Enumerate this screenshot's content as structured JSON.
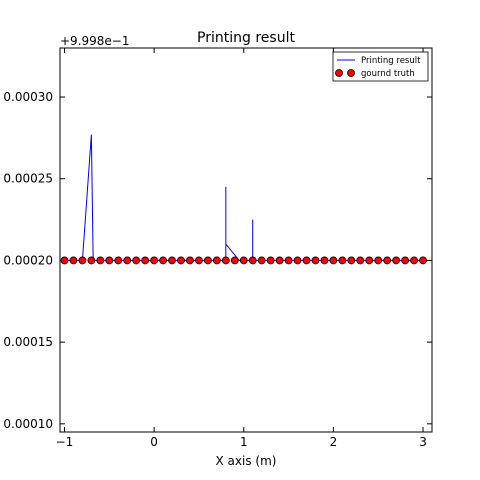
{
  "chart_data": {
    "type": "line",
    "title": "Printing result",
    "xlabel": "X axis (m)",
    "ylabel": "",
    "y_offset_label": "+9.998e−1",
    "xlim": [
      -1.05,
      3.1
    ],
    "ylim": [
      9.5e-05,
      0.00033
    ],
    "x_ticks": [
      -1,
      0,
      1,
      2,
      3
    ],
    "x_tick_labels": [
      "−1",
      "0",
      "1",
      "2",
      "3"
    ],
    "y_ticks": [
      0.0001,
      0.00015,
      0.0002,
      0.00025,
      0.0003
    ],
    "y_tick_labels": [
      "0.00010",
      "0.00015",
      "0.00020",
      "0.00025",
      "0.00030"
    ],
    "grid": false,
    "legend_position": "top-right",
    "series": [
      {
        "name": "Printing result",
        "kind": "line",
        "color": "#0000ff",
        "x": [
          -1.0,
          -0.9,
          -0.8,
          -0.7,
          -0.68,
          -0.56,
          -0.5,
          -0.4,
          -0.3,
          -0.2,
          -0.1,
          0.0,
          0.1,
          0.2,
          0.3,
          0.4,
          0.5,
          0.6,
          0.7,
          0.8,
          0.8,
          0.8,
          0.8,
          0.95,
          1.0,
          1.1,
          1.1,
          1.1,
          1.2,
          1.3,
          1.4,
          1.5,
          1.6,
          1.7,
          1.8,
          1.9,
          2.0,
          2.1,
          2.2,
          2.3,
          2.4,
          2.5,
          2.6,
          2.7,
          2.8,
          2.9,
          3.0
        ],
        "y": [
          0.0002,
          0.0002,
          0.0002,
          0.000277,
          0.0002,
          0.0002,
          0.0002,
          0.0002,
          0.0002,
          0.0002,
          0.0002,
          0.0002,
          0.0002,
          0.0002,
          0.0002,
          0.0002,
          0.0002,
          0.0002,
          0.0002,
          0.0002,
          0.000245,
          0.0002,
          0.00021,
          0.0002,
          0.0002,
          0.0002,
          0.000225,
          0.0002,
          0.0002,
          0.0002,
          0.0002,
          0.0002,
          0.0002,
          0.0002,
          0.0002,
          0.0002,
          0.0002,
          0.0002,
          0.0002,
          0.0002,
          0.0002,
          0.0002,
          0.0002,
          0.0002,
          0.0002,
          0.0002,
          0.0002
        ]
      },
      {
        "name": "gournd truth",
        "kind": "scatter",
        "color": "#ff0000",
        "edgecolor": "#000000",
        "x": [
          -1.0,
          -0.9,
          -0.8,
          -0.7,
          -0.6,
          -0.5,
          -0.4,
          -0.3,
          -0.2,
          -0.1,
          0.0,
          0.1,
          0.2,
          0.3,
          0.4,
          0.5,
          0.6,
          0.7,
          0.8,
          0.9,
          1.0,
          1.1,
          1.2,
          1.3,
          1.4,
          1.5,
          1.6,
          1.7,
          1.8,
          1.9,
          2.0,
          2.1,
          2.2,
          2.3,
          2.4,
          2.5,
          2.6,
          2.7,
          2.8,
          2.9,
          3.0
        ],
        "y": [
          0.0002,
          0.0002,
          0.0002,
          0.0002,
          0.0002,
          0.0002,
          0.0002,
          0.0002,
          0.0002,
          0.0002,
          0.0002,
          0.0002,
          0.0002,
          0.0002,
          0.0002,
          0.0002,
          0.0002,
          0.0002,
          0.0002,
          0.0002,
          0.0002,
          0.0002,
          0.0002,
          0.0002,
          0.0002,
          0.0002,
          0.0002,
          0.0002,
          0.0002,
          0.0002,
          0.0002,
          0.0002,
          0.0002,
          0.0002,
          0.0002,
          0.0002,
          0.0002,
          0.0002,
          0.0002,
          0.0002,
          0.0002
        ]
      }
    ]
  }
}
